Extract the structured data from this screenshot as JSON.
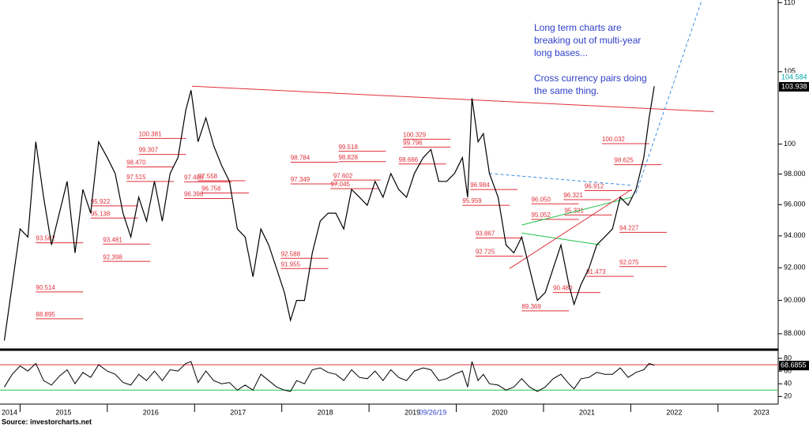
{
  "chart_data": {
    "type": "line",
    "xlim": [
      2014.77,
      2023.69
    ],
    "xticks": [
      2014,
      2015,
      2016,
      2017,
      2018,
      2019,
      2020,
      2021,
      2022,
      2023
    ],
    "ylim": [
      87.2,
      110.2
    ],
    "log_scale": true,
    "yticks": [
      {
        "value": 88,
        "label": "88.000"
      },
      {
        "value": 90,
        "label": "90.000"
      },
      {
        "value": 92,
        "label": "92.000"
      },
      {
        "value": 94,
        "label": "94.000"
      },
      {
        "value": 96,
        "label": "96.000"
      },
      {
        "value": 98,
        "label": "98.000"
      },
      100,
      105,
      110
    ],
    "x": [
      2014.82,
      2014.91,
      2015.0,
      2015.09,
      2015.18,
      2015.27,
      2015.36,
      2015.45,
      2015.54,
      2015.63,
      2015.72,
      2015.81,
      2015.9,
      2016.0,
      2016.09,
      2016.18,
      2016.27,
      2016.36,
      2016.45,
      2016.54,
      2016.63,
      2016.72,
      2016.81,
      2016.9,
      2016.96,
      2017.04,
      2017.13,
      2017.22,
      2017.31,
      2017.4,
      2017.49,
      2017.58,
      2017.67,
      2017.76,
      2017.85,
      2017.94,
      2018.03,
      2018.1,
      2018.17,
      2018.26,
      2018.35,
      2018.44,
      2018.53,
      2018.62,
      2018.71,
      2018.8,
      2018.89,
      2018.98,
      2019.07,
      2019.16,
      2019.25,
      2019.34,
      2019.43,
      2019.52,
      2019.62,
      2019.71,
      2019.8,
      2019.89,
      2019.98,
      2020.07,
      2020.13,
      2020.18,
      2020.25,
      2020.31,
      2020.38,
      2020.48,
      2020.57,
      2020.66,
      2020.75,
      2020.84,
      2020.93,
      2021.02,
      2021.11,
      2021.2,
      2021.29,
      2021.35,
      2021.43,
      2021.52,
      2021.61,
      2021.7,
      2021.79,
      2021.88,
      2021.97,
      2022.06,
      2022.15,
      2022.21,
      2022.27
    ],
    "series": [
      {
        "color": "#000000",
        "values": [
          87.6,
          90.97,
          94.44,
          93.93,
          100.16,
          96.48,
          93.43,
          95.45,
          97.52,
          92.93,
          96.99,
          95.45,
          100.16,
          99.09,
          98.04,
          95.45,
          93.93,
          96.48,
          94.94,
          97.52,
          94.94,
          98.04,
          99.09,
          102.32,
          103.7,
          100.16,
          101.78,
          99.89,
          98.57,
          97.52,
          94.44,
          93.93,
          91.45,
          94.44,
          93.43,
          91.95,
          90.48,
          88.8,
          90.0,
          90.0,
          92.93,
          94.94,
          95.45,
          95.45,
          94.44,
          96.99,
          96.48,
          95.96,
          97.52,
          96.48,
          98.04,
          96.99,
          96.48,
          98.04,
          99.09,
          99.63,
          97.52,
          97.52,
          98.04,
          99.09,
          96.48,
          103.14,
          100.16,
          100.7,
          98.04,
          96.48,
          93.43,
          92.93,
          93.93,
          91.95,
          90.0,
          90.48,
          91.95,
          93.43,
          90.97,
          89.76,
          90.97,
          91.95,
          93.43,
          93.93,
          94.44,
          96.48,
          95.96,
          96.99,
          99.09,
          101.78,
          103.98
        ]
      }
    ],
    "price_markers": [
      {
        "value": 104.584,
        "color": "#00a6a6"
      },
      {
        "value": 103.938,
        "color": "#000000"
      }
    ],
    "trend_lines": [
      {
        "color": "#e0303a",
        "dashed": false,
        "points": [
          [
            2016.97,
            103.98
          ],
          [
            2022.95,
            102.21
          ]
        ]
      },
      {
        "color": "#3a8fe0",
        "dashed": true,
        "points": [
          [
            2022.06,
            96.73
          ],
          [
            2022.81,
            110.1
          ]
        ]
      },
      {
        "color": "#3a8fe0",
        "dashed": true,
        "points": [
          [
            2020.38,
            98.04
          ],
          [
            2022.01,
            97.26
          ]
        ]
      },
      {
        "color": "#22c24a",
        "dashed": false,
        "points": [
          [
            2020.75,
            94.69
          ],
          [
            2022.01,
            96.48
          ]
        ]
      },
      {
        "color": "#22c24a",
        "dashed": false,
        "points": [
          [
            2020.75,
            94.18
          ],
          [
            2021.65,
            93.43
          ]
        ]
      },
      {
        "color": "#e0303a",
        "dashed": false,
        "points": [
          [
            2020.61,
            91.95
          ],
          [
            2022.01,
            96.99
          ]
        ]
      }
    ],
    "levels": [
      {
        "x": 2016.36,
        "value": 100.381
      },
      {
        "x": 2016.36,
        "value": 99.307
      },
      {
        "x": 2016.22,
        "value": 98.47,
        "label": "98.470"
      },
      {
        "x": 2016.22,
        "value": 97.515
      },
      {
        "x": 2016.88,
        "value": 97.488
      },
      {
        "x": 2017.04,
        "value": 97.558
      },
      {
        "x": 2017.08,
        "value": 96.756
      },
      {
        "x": 2016.88,
        "value": 96.398
      },
      {
        "x": 2015.81,
        "value": 95.922
      },
      {
        "x": 2015.81,
        "value": 95.138
      },
      {
        "x": 2015.18,
        "value": 93.562
      },
      {
        "x": 2015.95,
        "value": 93.481
      },
      {
        "x": 2015.95,
        "value": 92.398
      },
      {
        "x": 2015.18,
        "value": 90.514
      },
      {
        "x": 2015.18,
        "value": 88.895
      },
      {
        "x": 2017.99,
        "value": 92.588
      },
      {
        "x": 2017.99,
        "value": 91.955
      },
      {
        "x": 2018.1,
        "value": 98.784
      },
      {
        "x": 2018.1,
        "value": 97.349
      },
      {
        "x": 2018.65,
        "value": 99.518
      },
      {
        "x": 2018.65,
        "value": 98.828
      },
      {
        "x": 2018.59,
        "value": 97.602
      },
      {
        "x": 2018.56,
        "value": 97.045
      },
      {
        "x": 2019.39,
        "value": 100.329
      },
      {
        "x": 2019.39,
        "value": 99.796
      },
      {
        "x": 2019.34,
        "value": 98.666
      },
      {
        "x": 2020.16,
        "value": 96.984
      },
      {
        "x": 2020.07,
        "value": 95.959
      },
      {
        "x": 2020.22,
        "value": 93.867
      },
      {
        "x": 2020.22,
        "value": 92.725
      },
      {
        "x": 2020.75,
        "value": 89.369
      },
      {
        "x": 2021.11,
        "value": 90.48,
        "label": "90.480"
      },
      {
        "x": 2021.49,
        "value": 91.473
      },
      {
        "x": 2020.86,
        "value": 96.05,
        "label": "96.050"
      },
      {
        "x": 2021.23,
        "value": 96.321
      },
      {
        "x": 2021.24,
        "value": 95.331
      },
      {
        "x": 2020.86,
        "value": 95.052
      },
      {
        "x": 2021.47,
        "value": 96.912
      },
      {
        "x": 2021.67,
        "value": 100.032
      },
      {
        "x": 2021.81,
        "value": 98.625
      },
      {
        "x": 2021.87,
        "value": 94.227
      },
      {
        "x": 2021.87,
        "value": 92.075
      }
    ],
    "annotation": [
      [
        "Long term charts are",
        "breaking out of multi-year",
        "long bases..."
      ],
      [
        "Cross currency pairs doing",
        "the same thing."
      ]
    ],
    "date_marker": {
      "x": 2019.73,
      "label": "09/26/19"
    },
    "rsi": {
      "ylim": [
        8,
        90
      ],
      "yticks": [
        20,
        40,
        60,
        80
      ],
      "color": "#000000",
      "overbought": 70,
      "oversold": 30,
      "last_label": 68.6855,
      "values": [
        35,
        55,
        68,
        60,
        72,
        45,
        38,
        52,
        62,
        40,
        58,
        50,
        70,
        60,
        55,
        42,
        38,
        55,
        45,
        60,
        45,
        62,
        60,
        72,
        75,
        42,
        60,
        45,
        40,
        42,
        30,
        38,
        30,
        55,
        45,
        35,
        30,
        28,
        45,
        40,
        62,
        65,
        58,
        55,
        45,
        62,
        50,
        48,
        60,
        45,
        62,
        50,
        45,
        60,
        65,
        62,
        45,
        48,
        55,
        60,
        35,
        75,
        45,
        55,
        40,
        38,
        30,
        35,
        48,
        35,
        28,
        35,
        48,
        55,
        40,
        32,
        48,
        50,
        58,
        55,
        55,
        65,
        50,
        58,
        62,
        72,
        69
      ]
    },
    "source": "Source:  investorcharts.net"
  }
}
